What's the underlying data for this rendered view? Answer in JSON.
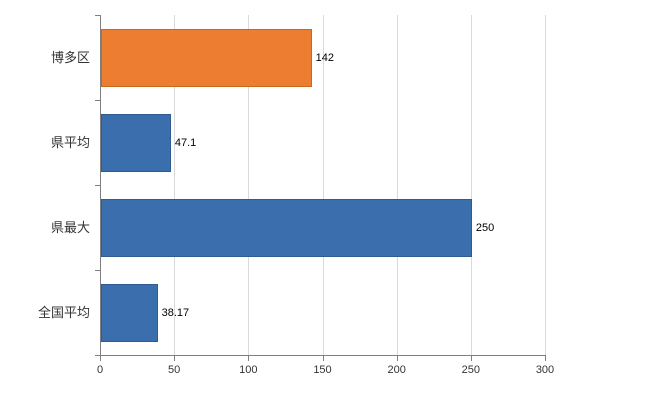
{
  "chart_data": {
    "type": "bar",
    "orientation": "horizontal",
    "title": "",
    "xlabel": "",
    "ylabel": "",
    "categories": [
      "博多区",
      "県平均",
      "県最大",
      "全国平均"
    ],
    "values": [
      142,
      47.1,
      250,
      38.17
    ],
    "value_labels": [
      "142",
      "47.1",
      "250",
      "38.17"
    ],
    "bar_colors": [
      "#ED7D31",
      "#3A6EAD",
      "#3A6EAD",
      "#3A6EAD"
    ],
    "bar_border_colors": [
      "#c9671f",
      "#2f5b93",
      "#2f5b93",
      "#2f5b93"
    ],
    "xlim": [
      0,
      300
    ],
    "xticks": [
      0,
      50,
      100,
      150,
      200,
      250,
      300
    ],
    "xtick_labels": [
      "0",
      "50",
      "100",
      "150",
      "200",
      "250",
      "300"
    ],
    "grid": true,
    "legend": "none",
    "colors": {
      "grid": "#d9d9d9",
      "axis": "#808080",
      "text": "#333333",
      "value_text": "#000000",
      "background": "#ffffff"
    }
  }
}
